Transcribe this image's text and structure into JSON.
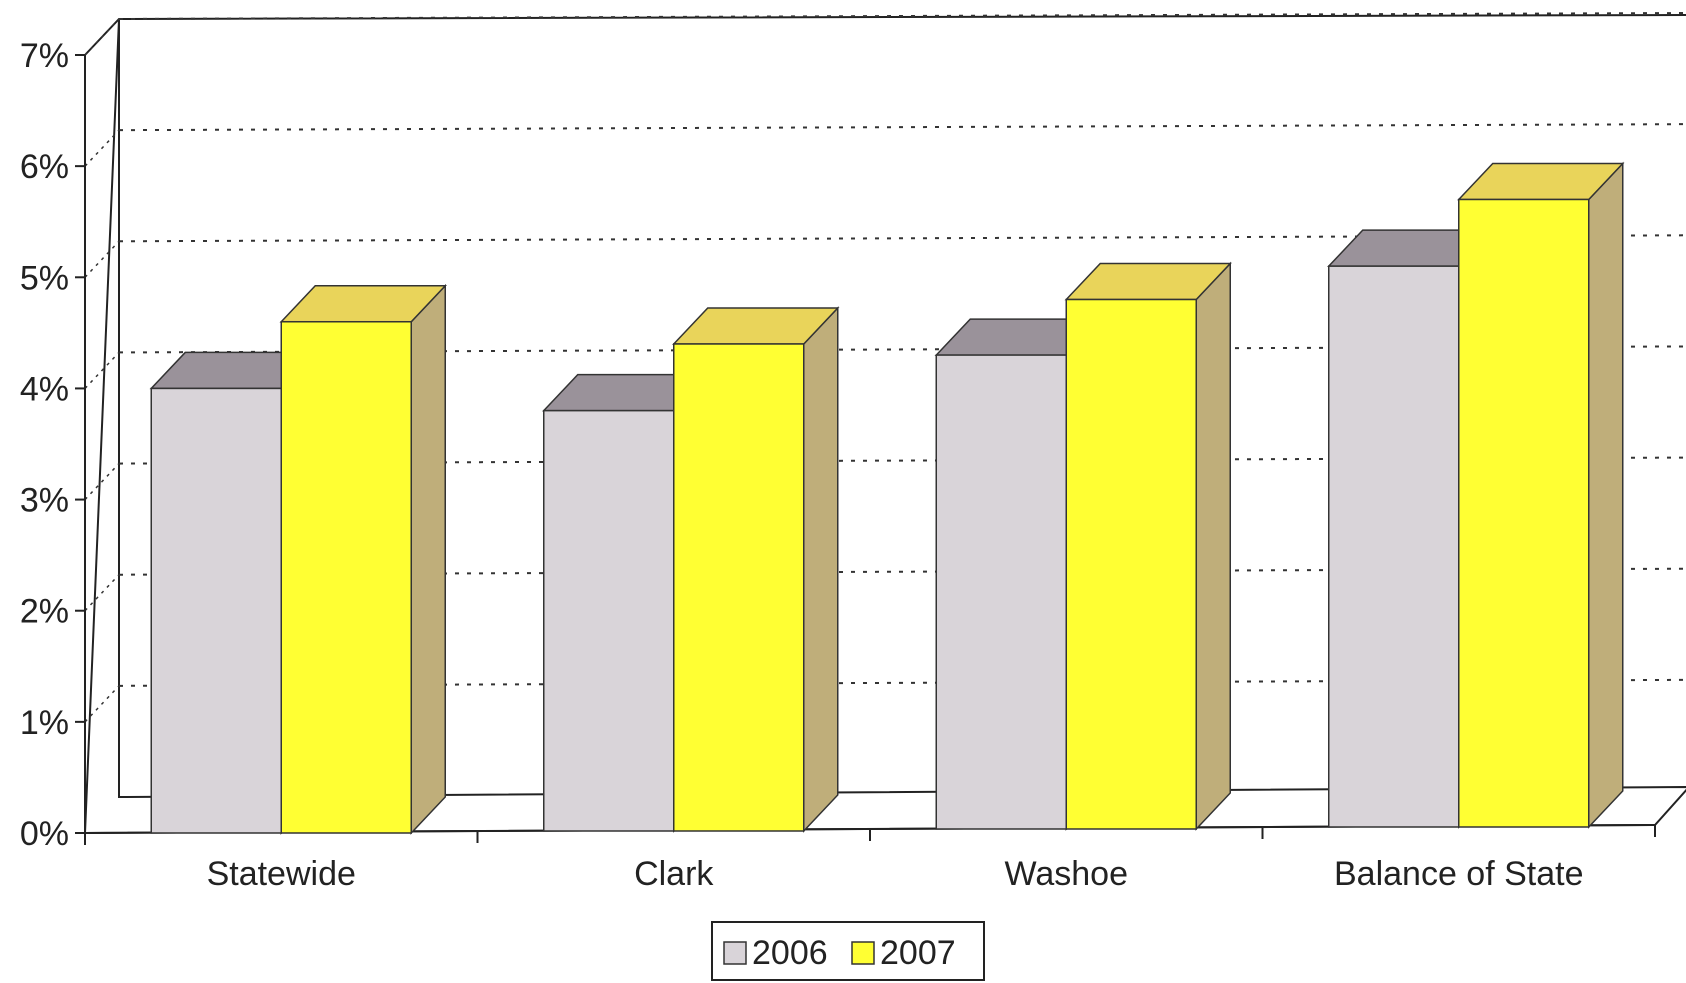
{
  "chart_data": {
    "type": "bar",
    "title": "",
    "xlabel": "",
    "ylabel": "",
    "categories": [
      "Statewide",
      "Clark",
      "Washoe",
      "Balance of State"
    ],
    "series": [
      {
        "name": "2006",
        "values": [
          4.0,
          3.8,
          4.3,
          5.1
        ],
        "color": "#d9d4d9"
      },
      {
        "name": "2007",
        "values": [
          4.6,
          4.4,
          4.8,
          5.7
        ],
        "color": "#ffff33"
      }
    ],
    "ylim": [
      0,
      7
    ],
    "y_ticks": [
      "0%",
      "1%",
      "2%",
      "3%",
      "4%",
      "5%",
      "6%",
      "7%"
    ],
    "grid": true,
    "grid_style": "dotted",
    "legend_position": "bottom",
    "three_d": true
  }
}
